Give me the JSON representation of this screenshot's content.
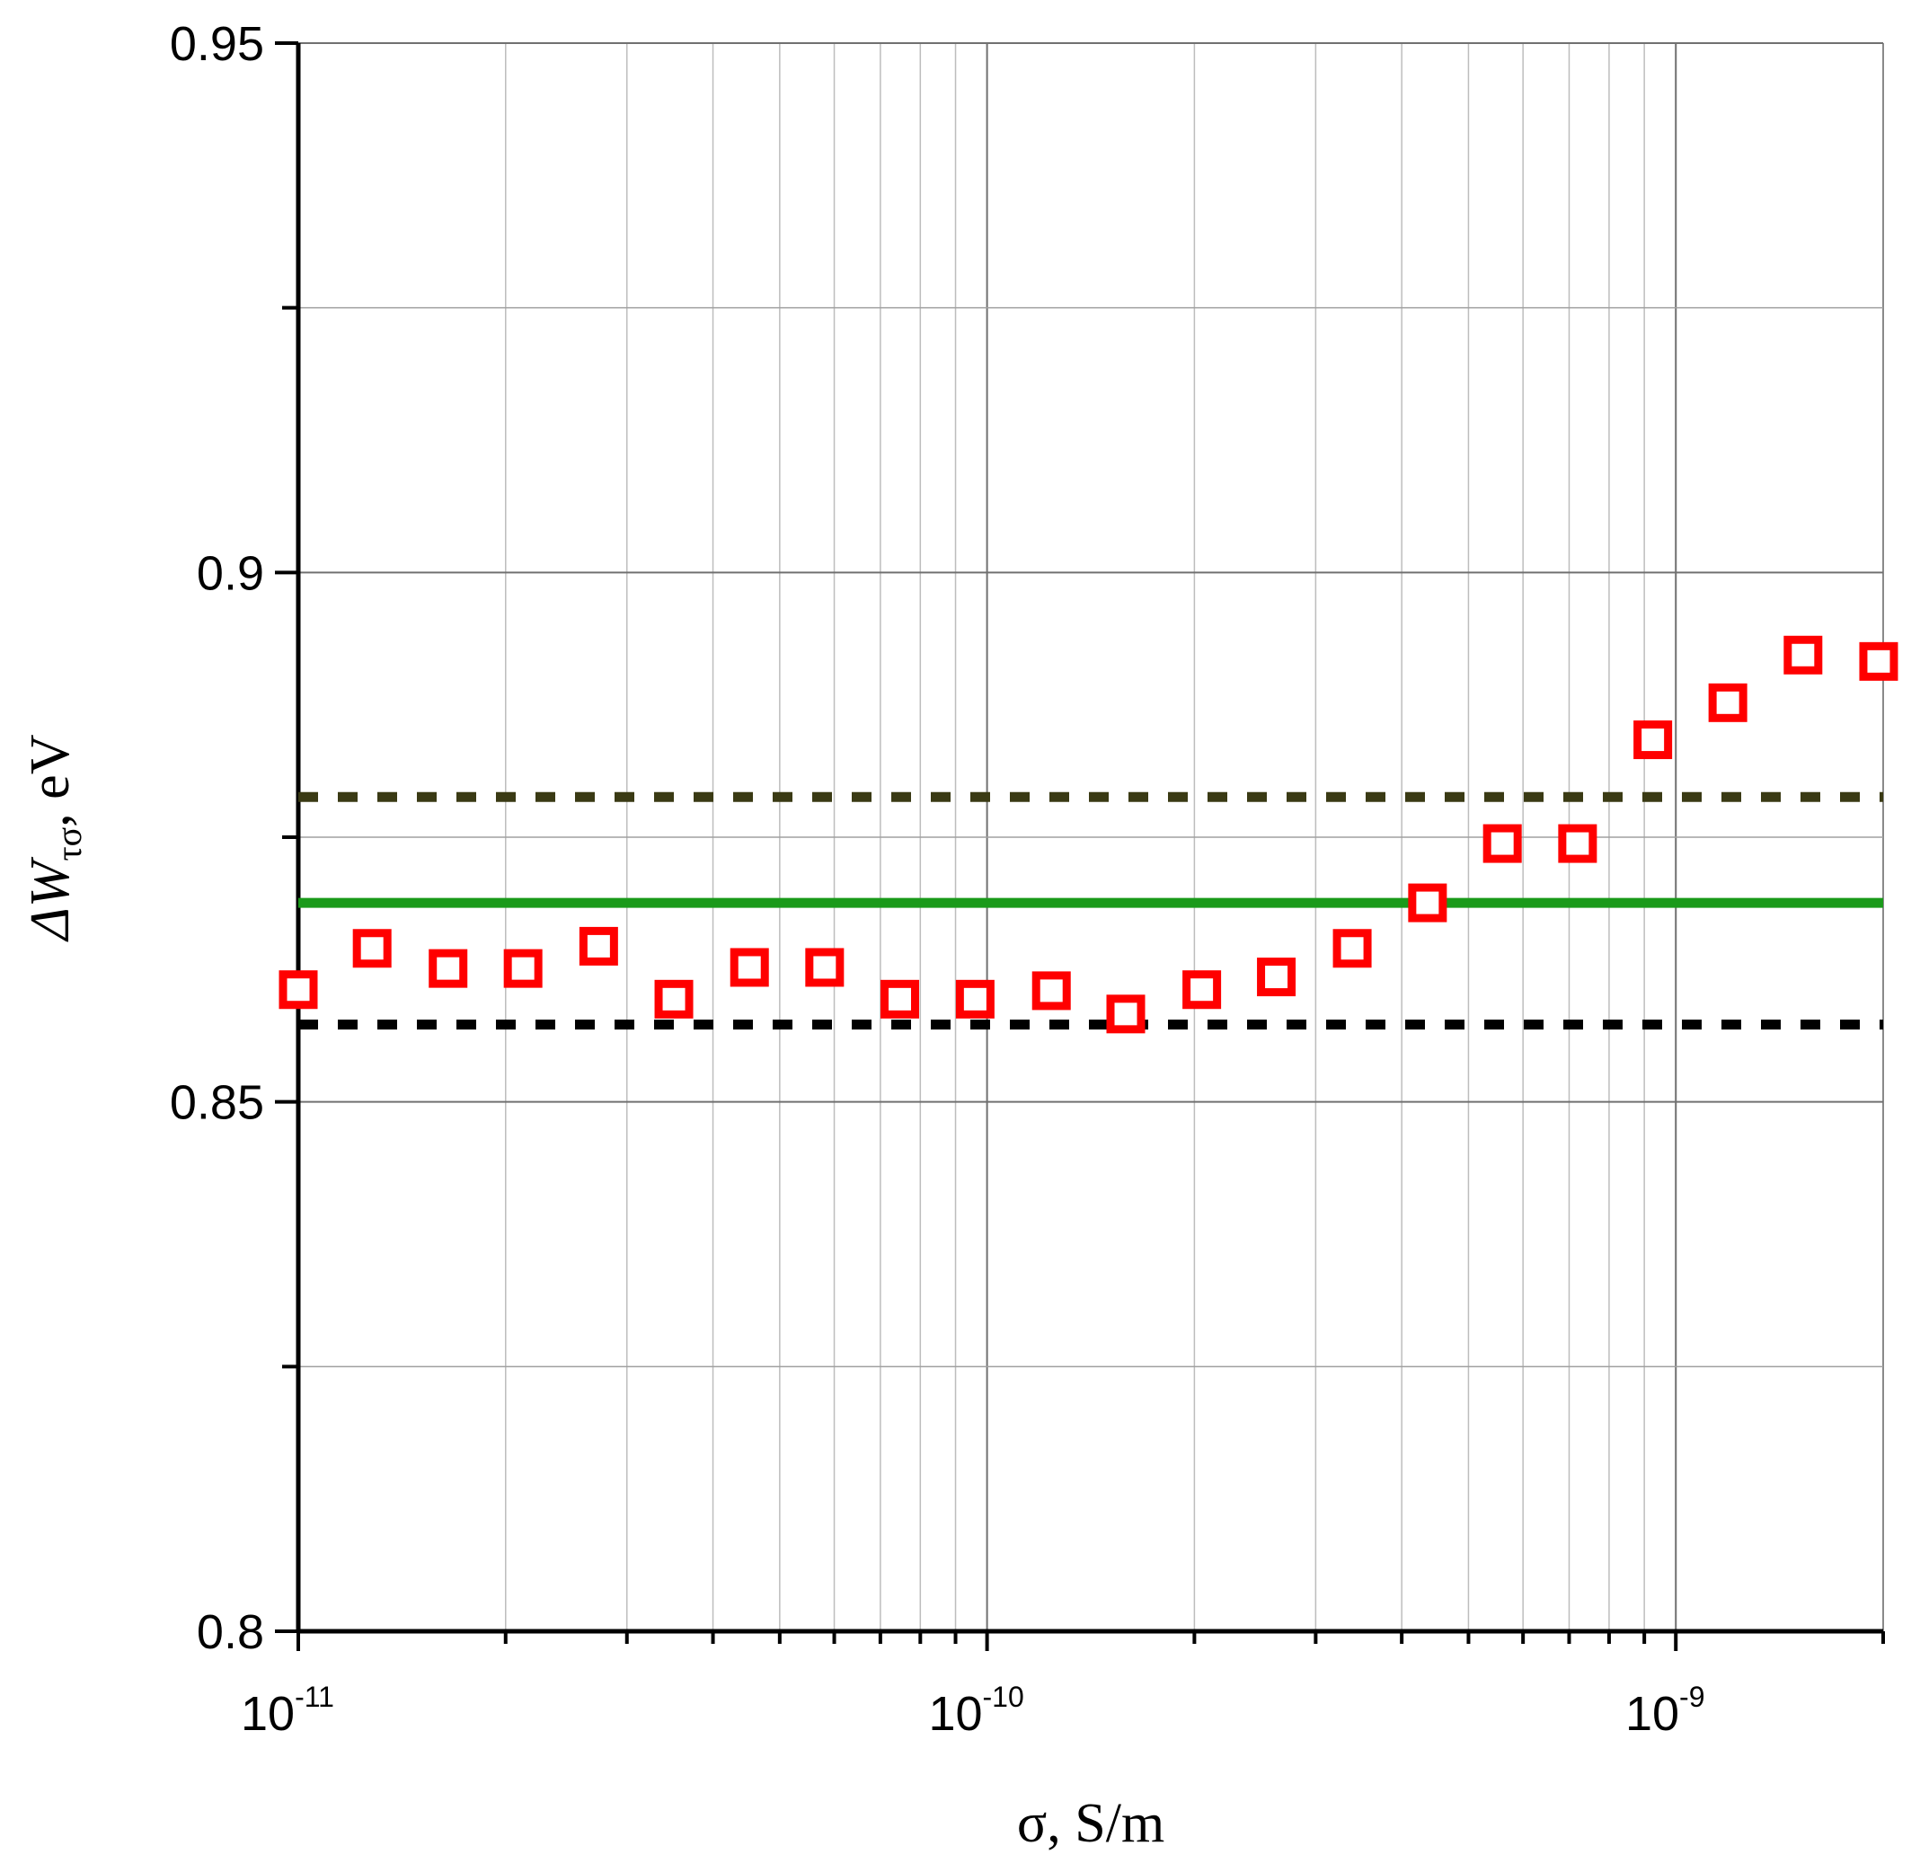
{
  "chart_data": {
    "type": "scatter",
    "title": "",
    "xlabel": "σ, S/m",
    "ylabel": {
      "main": "ΔW",
      "subscript": "τσ",
      "suffix": ", eV"
    },
    "x_scale": "log",
    "xlim": [
      1e-11,
      2e-09
    ],
    "ylim": [
      0.8,
      0.95
    ],
    "grid": true,
    "x_ticks": [
      {
        "base": "10",
        "exp": "-11",
        "value": 1e-11
      },
      {
        "base": "10",
        "exp": "-10",
        "value": 1e-10
      },
      {
        "base": "10",
        "exp": "-9",
        "value": 1e-09
      }
    ],
    "y_ticks": [
      "0.8",
      "0.85",
      "0.9",
      "0.95"
    ],
    "series": [
      {
        "marker": "square-open",
        "color": "#ff0000",
        "points": [
          {
            "x": 1e-11,
            "y": 0.8606
          },
          {
            "x": 1.28e-11,
            "y": 0.8645
          },
          {
            "x": 1.65e-11,
            "y": 0.8626
          },
          {
            "x": 2.12e-11,
            "y": 0.8626
          },
          {
            "x": 2.73e-11,
            "y": 0.8647
          },
          {
            "x": 3.51e-11,
            "y": 0.8597
          },
          {
            "x": 4.52e-11,
            "y": 0.8627
          },
          {
            "x": 5.81e-11,
            "y": 0.8627
          },
          {
            "x": 7.47e-11,
            "y": 0.8597
          },
          {
            "x": 9.61e-11,
            "y": 0.8597
          },
          {
            "x": 1.24e-10,
            "y": 0.8605
          },
          {
            "x": 1.59e-10,
            "y": 0.8583
          },
          {
            "x": 2.05e-10,
            "y": 0.8606
          },
          {
            "x": 2.63e-10,
            "y": 0.8618
          },
          {
            "x": 3.39e-10,
            "y": 0.8645
          },
          {
            "x": 4.36e-10,
            "y": 0.8688
          },
          {
            "x": 5.6e-10,
            "y": 0.8744
          },
          {
            "x": 7.2e-10,
            "y": 0.8744
          },
          {
            "x": 9.26e-10,
            "y": 0.8842
          },
          {
            "x": 1.19e-09,
            "y": 0.8877
          },
          {
            "x": 1.53e-09,
            "y": 0.8922
          },
          {
            "x": 1.97e-09,
            "y": 0.8916
          }
        ]
      }
    ],
    "reference_lines": [
      {
        "y": 0.8788,
        "style": "dashed",
        "color": "#3a3a14"
      },
      {
        "y": 0.8688,
        "style": "solid",
        "color": "#1a9a1a"
      },
      {
        "y": 0.8573,
        "style": "dashed",
        "color": "#000000"
      }
    ]
  }
}
